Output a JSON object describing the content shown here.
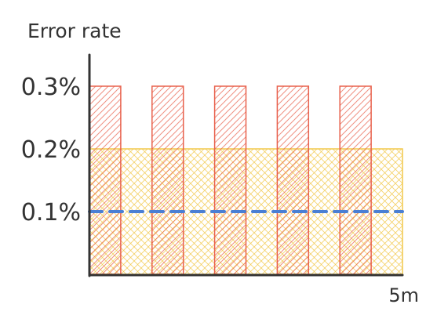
{
  "chart_data": {
    "type": "bar",
    "title": "",
    "ylabel": "Error rate",
    "xlabel": "",
    "x_tick_labels": [
      "5m"
    ],
    "y_tick_labels": [
      "0.1%",
      "0.2%",
      "0.3%"
    ],
    "y_ticks": [
      0.1,
      0.2,
      0.3
    ],
    "ylim": [
      0,
      0.3
    ],
    "bars": {
      "values": [
        0.3,
        0.3,
        0.3,
        0.3,
        0.3
      ],
      "color": "#e8604c",
      "fill": "diagonal-hatch"
    },
    "threshold_band": {
      "value": 0.2,
      "color": "#f2c94c",
      "fill": "cross-hatch"
    },
    "reference_line": {
      "value": 0.1,
      "color": "#4a7fd4",
      "style": "dashed"
    },
    "grid": false
  }
}
